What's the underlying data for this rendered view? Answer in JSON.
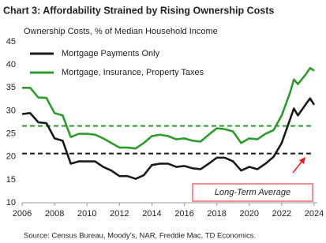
{
  "chart_data": {
    "type": "line",
    "title": "Chart 3: Affordability Strained by Rising Ownership Costs",
    "subtitle": "Ownership Costs, % of Median Household Income",
    "source": "Source: Census Bureau, Moody's, NAR, Freddie Mac, TD Economics.",
    "annotation": "Long-Term Average",
    "x": [
      2006,
      2006.5,
      2007,
      2007.5,
      2008,
      2008.5,
      2009,
      2009.5,
      2010,
      2010.5,
      2011,
      2011.5,
      2012,
      2012.5,
      2013,
      2013.5,
      2014,
      2014.5,
      2015,
      2015.5,
      2016,
      2016.5,
      2017,
      2017.5,
      2018,
      2018.5,
      2019,
      2019.5,
      2020,
      2020.5,
      2021,
      2021.5,
      2022,
      2022.5,
      2022.75,
      2023,
      2023.5,
      2023.75,
      2024
    ],
    "series": [
      {
        "name": "Mortgage Payments Only",
        "color": "#1a1a1a",
        "values": [
          29.3,
          29.5,
          27.5,
          27.3,
          24,
          23.5,
          18.5,
          19,
          19,
          19,
          17.8,
          17,
          15.8,
          15.8,
          15.2,
          16,
          18.2,
          18.5,
          18.5,
          17.8,
          18,
          17.5,
          17.3,
          18.5,
          19.8,
          19.8,
          19,
          17,
          17.8,
          17.3,
          18.5,
          20,
          23,
          28,
          30.5,
          29,
          31.5,
          32.7,
          31.3
        ]
      },
      {
        "name": "Mortgage, Insurance, Property Taxes",
        "color": "#2e9a2e",
        "values": [
          35,
          35,
          32.9,
          32.8,
          29.5,
          29,
          24.3,
          25,
          25,
          24.8,
          24,
          23,
          22,
          22,
          21.8,
          23,
          24.5,
          24.8,
          24.5,
          23.8,
          24,
          23.5,
          23.3,
          24.8,
          26.2,
          26,
          25.5,
          23,
          24,
          23.8,
          25,
          25.8,
          29,
          33.8,
          36.8,
          35.8,
          38,
          39.3,
          38.7
        ]
      }
    ],
    "reference_lines": [
      {
        "value": 26.7,
        "color": "#2e9a2e"
      },
      {
        "value": 20.7,
        "color": "#1a1a1a"
      }
    ],
    "xlim": [
      2006,
      2024
    ],
    "xticks": [
      2006,
      2008,
      2010,
      2012,
      2014,
      2016,
      2018,
      2020,
      2022,
      2024
    ],
    "ylim": [
      10,
      45
    ],
    "yticks": [
      10,
      15,
      20,
      25,
      30,
      35,
      40,
      45
    ],
    "annotation_color": "#e02020"
  }
}
